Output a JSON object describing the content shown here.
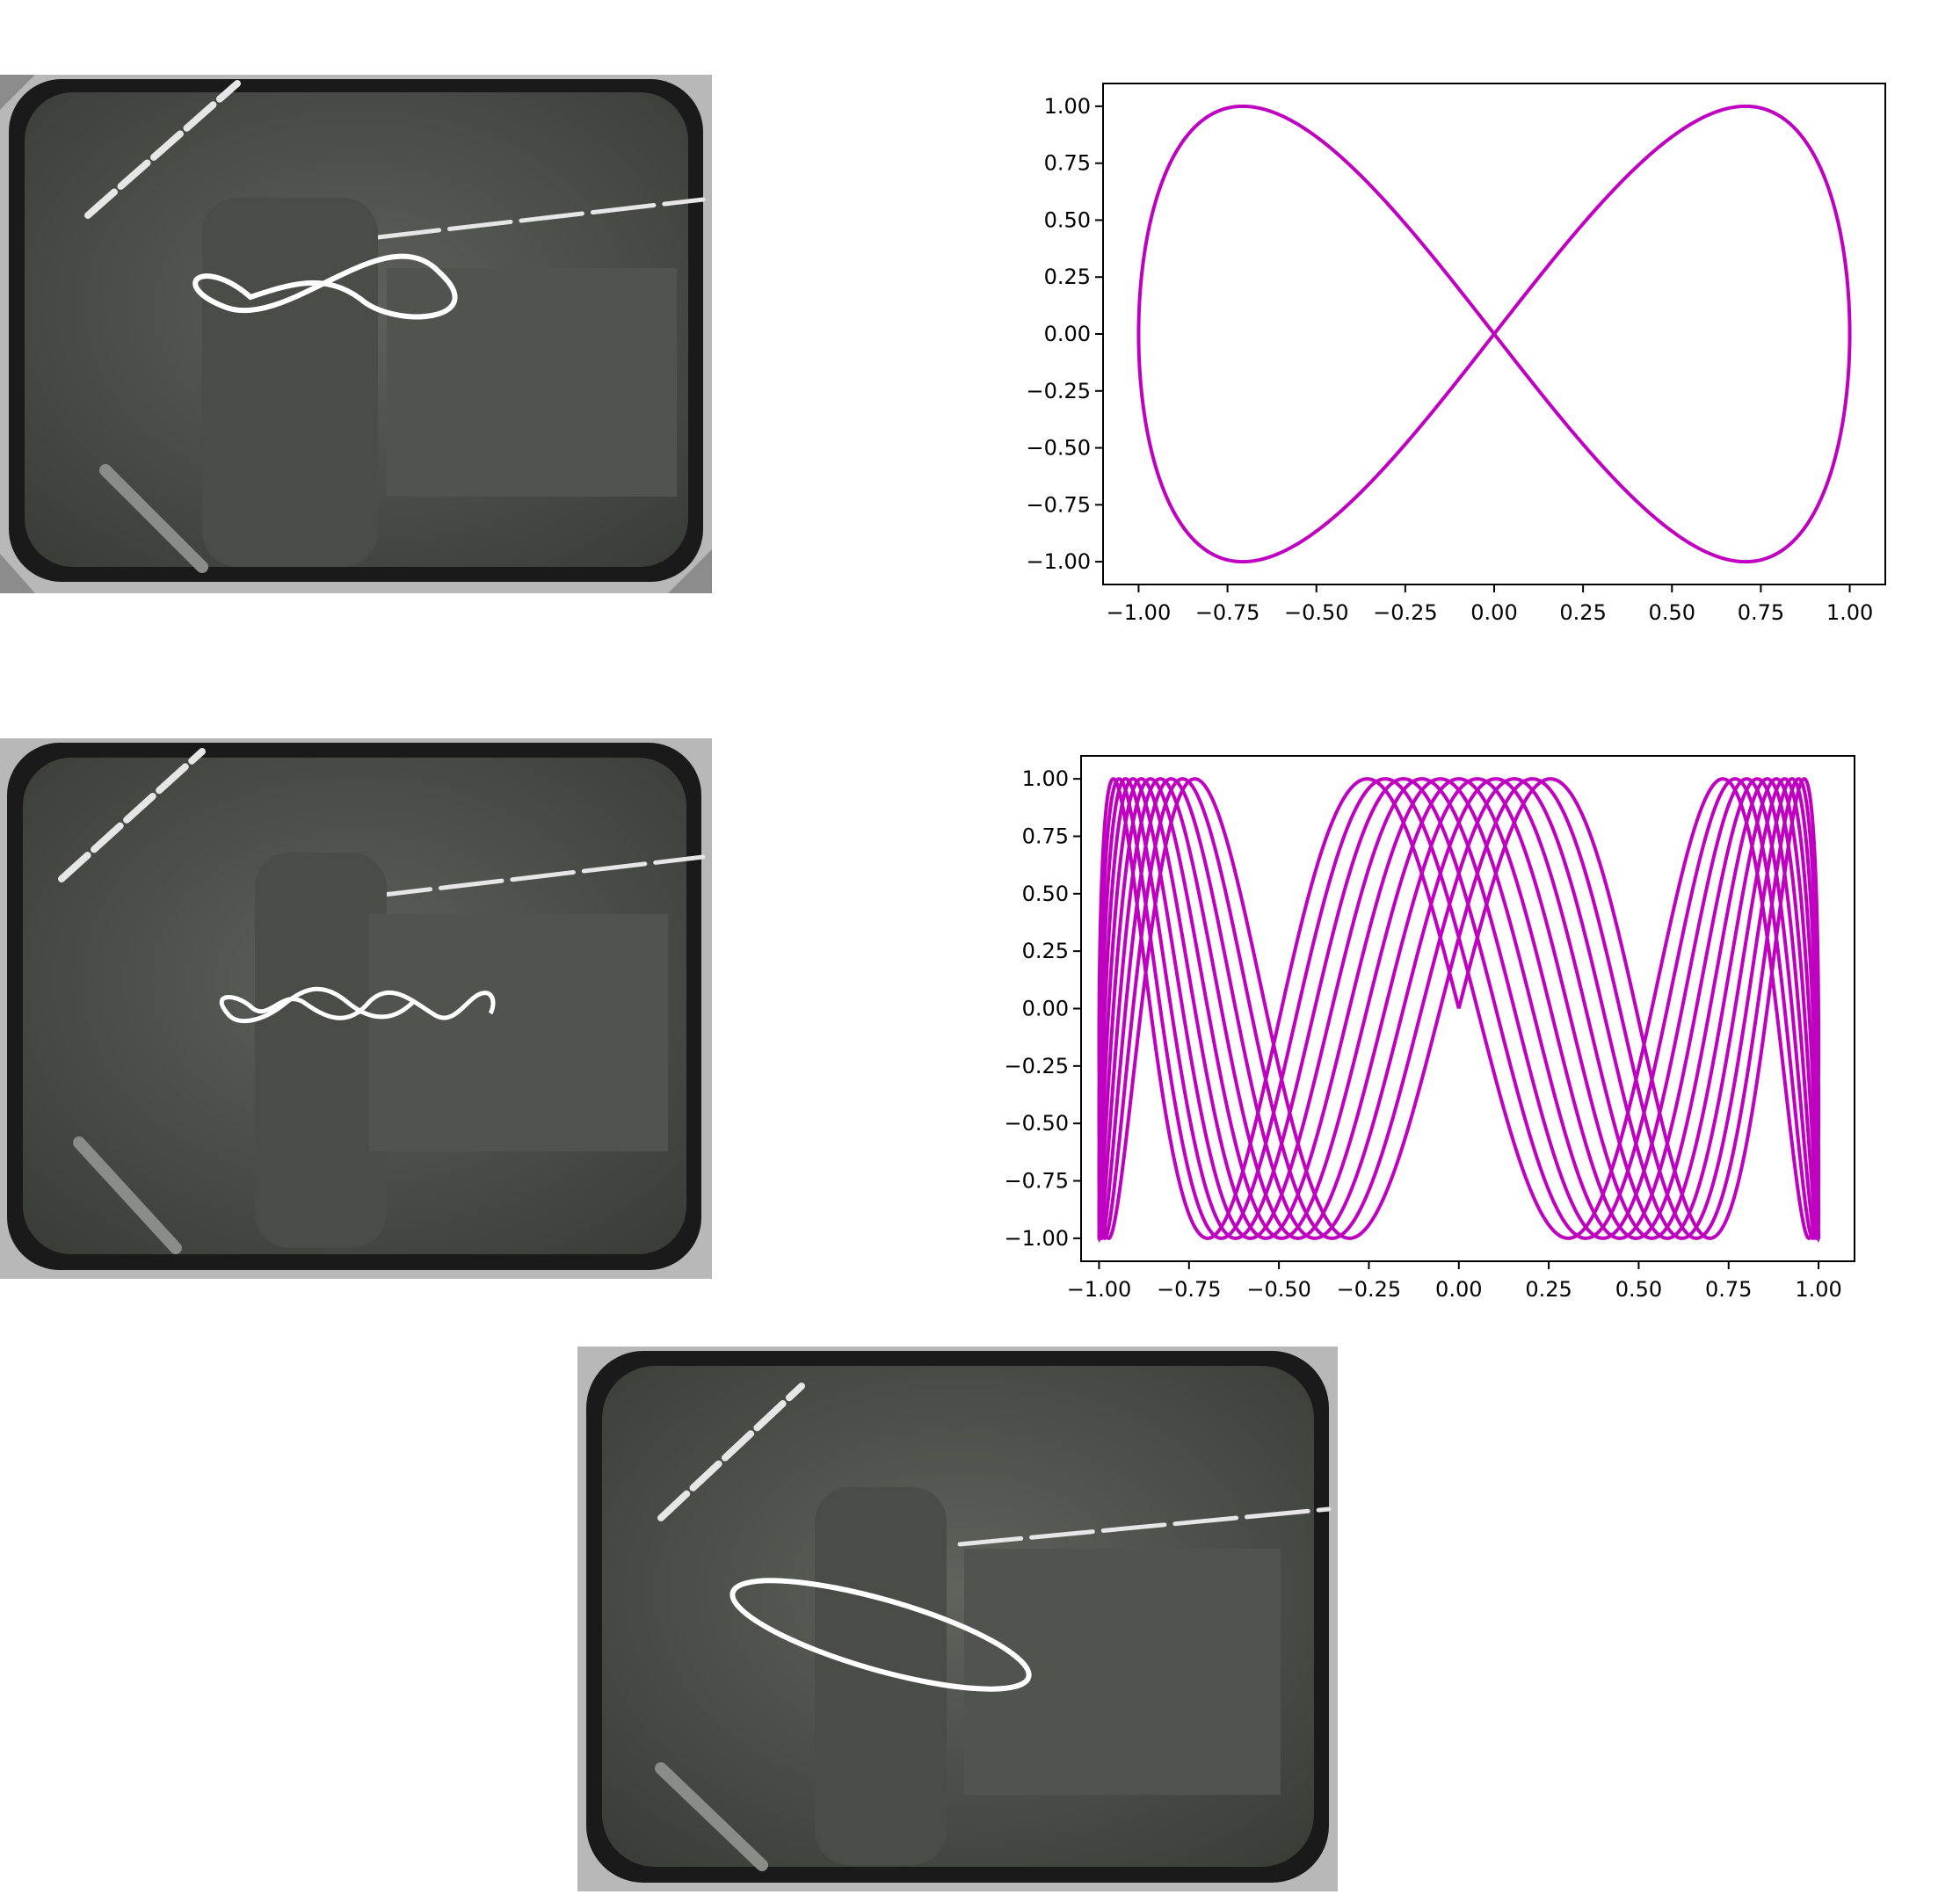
{
  "colors": {
    "curve": "#c000c0",
    "axis": "#000000",
    "screen_dark": "#3a3c38",
    "screen_mid": "#585a55",
    "bezel": "#1c1c1c",
    "casing": "#b4b4b4",
    "trace": "#ffffff",
    "reflection": "#e8e8e8"
  },
  "photos": [
    {
      "name": "crt-photo-figure-eight",
      "trace": "figure-eight"
    },
    {
      "name": "crt-photo-wave",
      "trace": "wave"
    },
    {
      "name": "crt-photo-ellipse",
      "trace": "ellipse"
    }
  ],
  "chart_data": [
    {
      "type": "line",
      "curve": "lissajous",
      "x_of_t": "sin(t)",
      "y_of_t": "sin(2t)",
      "t_range": [
        0,
        6.2832
      ],
      "xlim": [
        -1.1,
        1.1
      ],
      "ylim": [
        -1.1,
        1.1
      ],
      "xticks": [
        "−1.00",
        "−0.75",
        "−0.50",
        "−0.25",
        "0.00",
        "0.25",
        "0.50",
        "0.75",
        "1.00"
      ],
      "yticks": [
        "1.00",
        "0.75",
        "0.50",
        "0.25",
        "0.00",
        "−0.25",
        "−0.50",
        "−0.75",
        "−1.00"
      ],
      "grid": false,
      "title": "",
      "xlabel": "",
      "ylabel": ""
    },
    {
      "type": "line",
      "curve": "lissajous",
      "x_of_t": "sin(t)",
      "y_of_t": "sin(6.1t)",
      "t_range": [
        0,
        31.4159
      ],
      "xlim": [
        -1.05,
        1.1
      ],
      "ylim": [
        -1.1,
        1.1
      ],
      "xticks": [
        "−1.00",
        "−0.75",
        "−0.50",
        "−0.25",
        "0.00",
        "0.25",
        "0.50",
        "0.75",
        "1.00"
      ],
      "yticks": [
        "1.00",
        "0.75",
        "0.50",
        "0.25",
        "0.00",
        "−0.25",
        "−0.50",
        "−0.75",
        "−1.00"
      ],
      "grid": false,
      "title": "",
      "xlabel": "",
      "ylabel": ""
    }
  ]
}
